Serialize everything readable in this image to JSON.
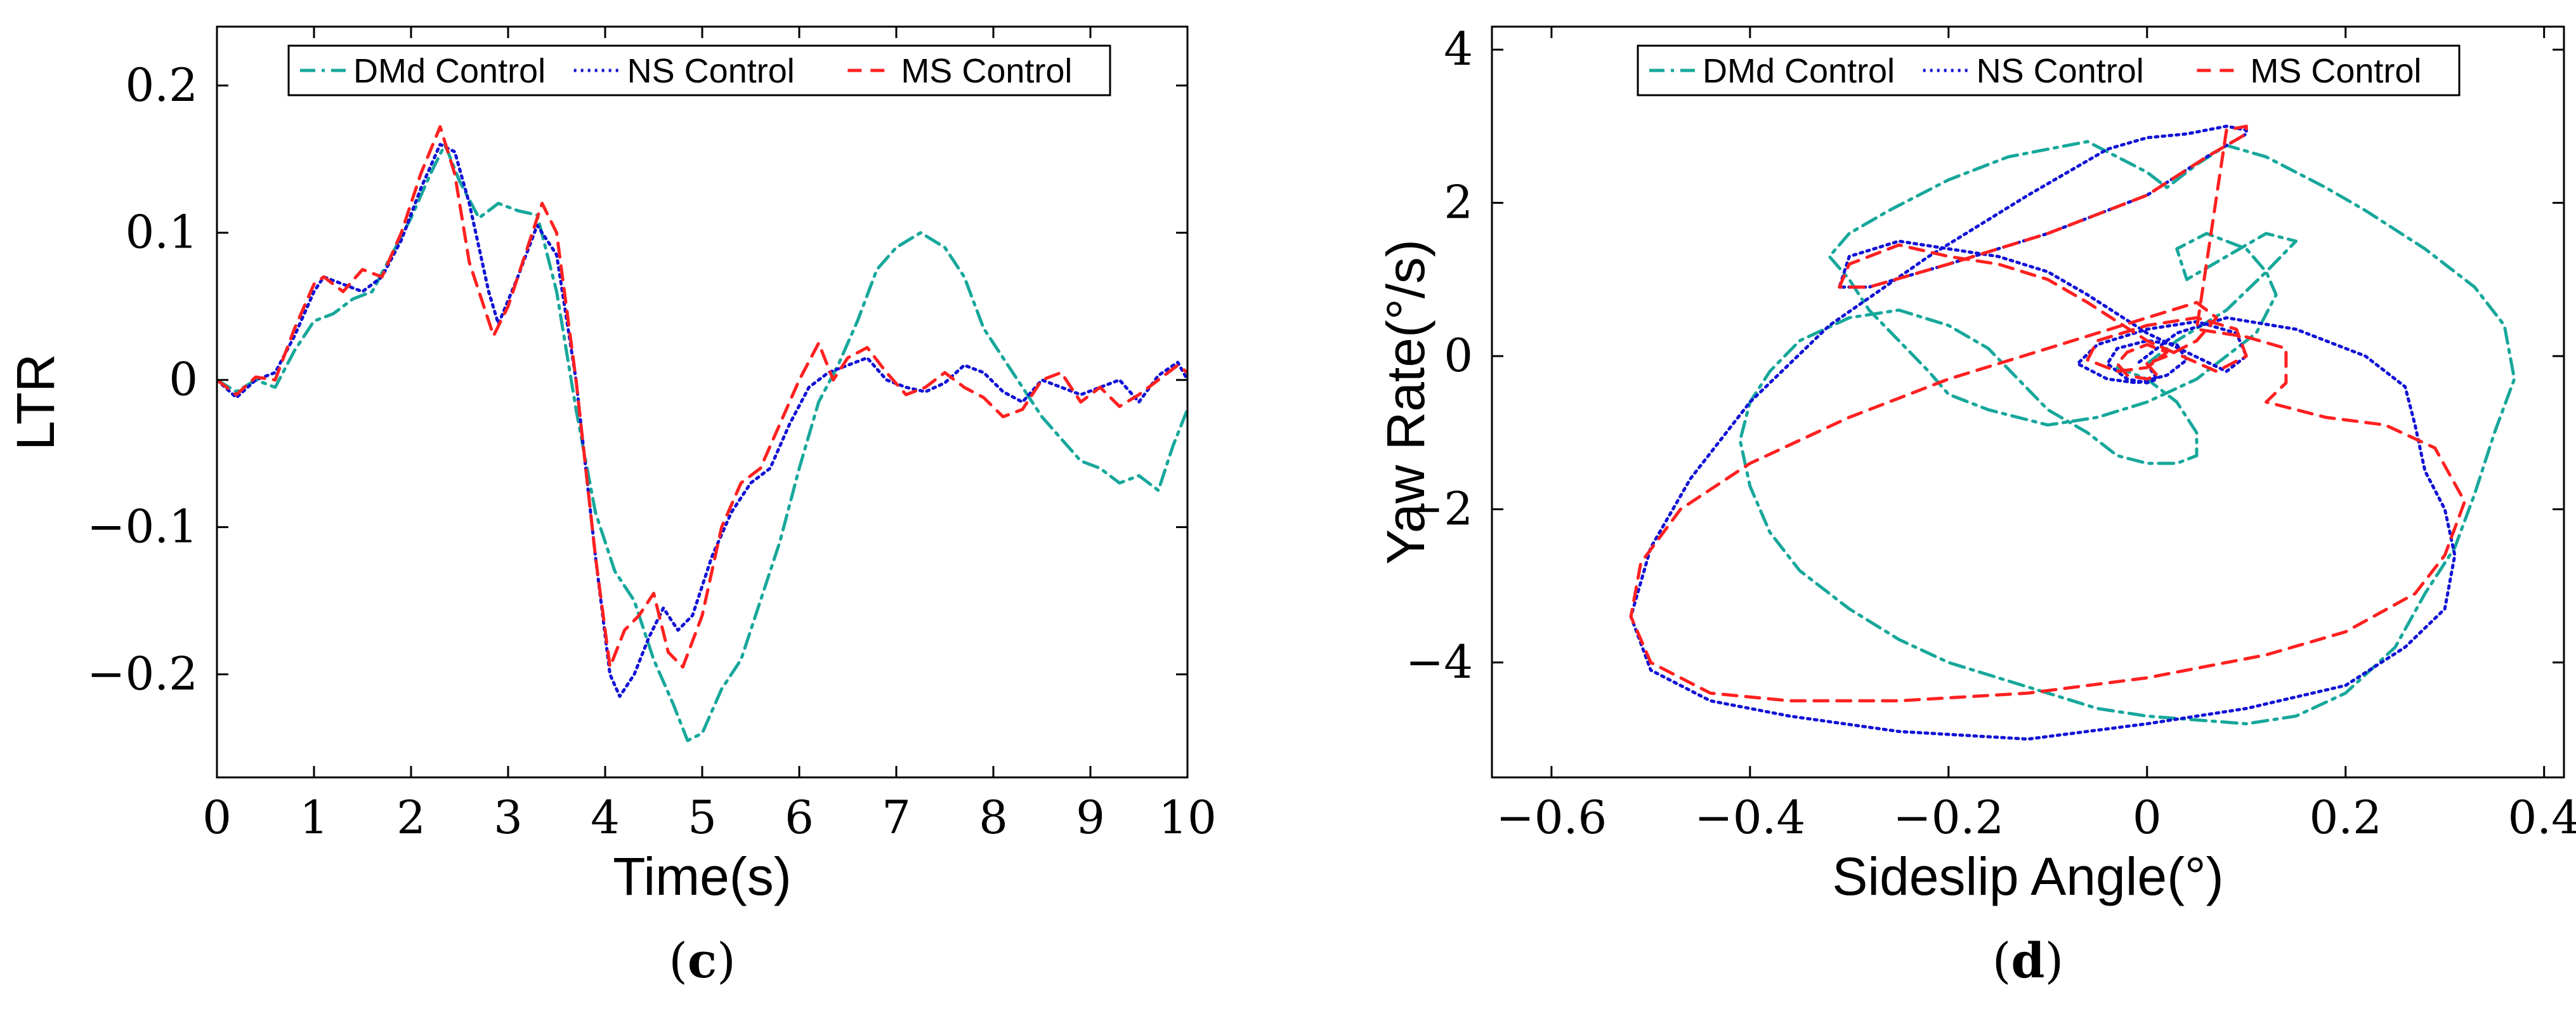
{
  "chart_data": [
    {
      "id": "c",
      "type": "line",
      "panel_label": "c",
      "xlabel": "Time(s)",
      "ylabel": "LTR",
      "xlim": [
        0,
        10
      ],
      "ylim": [
        -0.27,
        0.24
      ],
      "xticks": [
        0,
        1,
        2,
        3,
        4,
        5,
        6,
        7,
        8,
        9,
        10
      ],
      "xtick_labels": [
        "0",
        "1",
        "2",
        "3",
        "4",
        "5",
        "6",
        "7",
        "8",
        "9",
        "10"
      ],
      "yticks": [
        -0.2,
        -0.1,
        0,
        0.1,
        0.2
      ],
      "ytick_labels": [
        "−0.2",
        "−0.1",
        "0",
        "0.1",
        "0.2"
      ],
      "grid": false,
      "legend_position": "top",
      "series": [
        {
          "name": "DMd Control",
          "color": "#17a79b",
          "dash": "dashdot",
          "x": [
            0,
            0.2,
            0.4,
            0.6,
            0.8,
            1.0,
            1.2,
            1.4,
            1.6,
            1.8,
            2.0,
            2.2,
            2.35,
            2.5,
            2.7,
            2.9,
            3.1,
            3.3,
            3.5,
            3.7,
            3.9,
            4.1,
            4.3,
            4.5,
            4.7,
            4.85,
            5.0,
            5.2,
            5.4,
            5.6,
            5.8,
            6.0,
            6.2,
            6.4,
            6.6,
            6.8,
            7.0,
            7.25,
            7.5,
            7.7,
            7.9,
            8.1,
            8.3,
            8.5,
            8.7,
            8.9,
            9.1,
            9.3,
            9.5,
            9.7,
            9.85,
            10.0
          ],
          "y": [
            0.0,
            -0.008,
            0.0,
            -0.005,
            0.02,
            0.04,
            0.045,
            0.055,
            0.06,
            0.085,
            0.11,
            0.14,
            0.16,
            0.135,
            0.11,
            0.12,
            0.115,
            0.112,
            0.06,
            -0.02,
            -0.09,
            -0.13,
            -0.15,
            -0.19,
            -0.22,
            -0.245,
            -0.24,
            -0.21,
            -0.19,
            -0.15,
            -0.11,
            -0.06,
            -0.015,
            0.01,
            0.04,
            0.075,
            0.09,
            0.1,
            0.09,
            0.07,
            0.035,
            0.015,
            -0.005,
            -0.025,
            -0.04,
            -0.055,
            -0.06,
            -0.07,
            -0.065,
            -0.075,
            -0.045,
            -0.02
          ]
        },
        {
          "name": "NS Control",
          "color": "#1212d6",
          "dash": "dotted",
          "x": [
            0,
            0.2,
            0.4,
            0.6,
            0.8,
            1.0,
            1.1,
            1.3,
            1.5,
            1.7,
            1.9,
            2.1,
            2.3,
            2.45,
            2.6,
            2.8,
            2.9,
            3.1,
            3.3,
            3.5,
            3.7,
            3.9,
            4.05,
            4.15,
            4.3,
            4.45,
            4.6,
            4.75,
            4.9,
            5.1,
            5.3,
            5.5,
            5.7,
            5.9,
            6.1,
            6.3,
            6.5,
            6.7,
            6.9,
            7.1,
            7.3,
            7.5,
            7.7,
            7.9,
            8.1,
            8.3,
            8.5,
            8.7,
            8.9,
            9.1,
            9.3,
            9.5,
            9.7,
            9.9,
            10.0
          ],
          "y": [
            0.0,
            -0.012,
            0.0,
            0.005,
            0.03,
            0.06,
            0.07,
            0.065,
            0.06,
            0.07,
            0.095,
            0.13,
            0.16,
            0.155,
            0.12,
            0.06,
            0.038,
            0.07,
            0.105,
            0.085,
            0.0,
            -0.12,
            -0.2,
            -0.215,
            -0.2,
            -0.175,
            -0.155,
            -0.17,
            -0.16,
            -0.12,
            -0.09,
            -0.07,
            -0.06,
            -0.03,
            -0.005,
            0.005,
            0.01,
            0.015,
            0.0,
            -0.005,
            -0.008,
            -0.002,
            0.01,
            0.005,
            -0.008,
            -0.015,
            0.0,
            -0.005,
            -0.01,
            -0.005,
            0.0,
            -0.015,
            0.003,
            0.012,
            0.0
          ]
        },
        {
          "name": "MS Control",
          "color": "#ff2020",
          "dash": "dashed",
          "x": [
            0,
            0.2,
            0.4,
            0.6,
            0.8,
            1.0,
            1.1,
            1.3,
            1.5,
            1.7,
            1.9,
            2.1,
            2.3,
            2.45,
            2.6,
            2.8,
            2.85,
            3.0,
            3.2,
            3.35,
            3.5,
            3.7,
            3.9,
            4.05,
            4.2,
            4.35,
            4.5,
            4.65,
            4.8,
            5.0,
            5.2,
            5.4,
            5.6,
            5.8,
            6.0,
            6.2,
            6.35,
            6.5,
            6.7,
            6.9,
            7.1,
            7.3,
            7.5,
            7.7,
            7.9,
            8.1,
            8.3,
            8.5,
            8.7,
            8.9,
            9.1,
            9.3,
            9.5,
            9.7,
            9.9,
            10.0
          ],
          "y": [
            0.0,
            -0.01,
            0.002,
            0.0,
            0.035,
            0.065,
            0.07,
            0.06,
            0.075,
            0.07,
            0.1,
            0.14,
            0.172,
            0.14,
            0.08,
            0.04,
            0.03,
            0.05,
            0.09,
            0.12,
            0.1,
            0.0,
            -0.12,
            -0.195,
            -0.17,
            -0.16,
            -0.145,
            -0.185,
            -0.195,
            -0.16,
            -0.1,
            -0.07,
            -0.06,
            -0.03,
            0.0,
            0.025,
            0.0,
            0.015,
            0.022,
            0.005,
            -0.01,
            -0.005,
            0.005,
            -0.005,
            -0.012,
            -0.025,
            -0.02,
            0.0,
            0.005,
            -0.015,
            -0.005,
            -0.018,
            -0.01,
            0.0,
            0.01,
            0.005
          ]
        }
      ]
    },
    {
      "id": "d",
      "type": "line",
      "panel_label": "d",
      "xlabel": "Sideslip Angle(°)",
      "ylabel": "Yaw Rate(°/s)",
      "xlim": [
        -0.66,
        0.42
      ],
      "ylim": [
        -5.5,
        4.3
      ],
      "xticks": [
        -0.6,
        -0.4,
        -0.2,
        0,
        0.2,
        0.4
      ],
      "xtick_labels": [
        "−0.6",
        "−0.4",
        "−0.2",
        "0",
        "0.2",
        "0.4"
      ],
      "yticks": [
        -4,
        -2,
        0,
        2,
        4
      ],
      "ytick_labels": [
        "−4",
        "−2",
        "0",
        "2",
        "4"
      ],
      "grid": false,
      "legend_position": "top",
      "series": [
        {
          "name": "DMd Control",
          "color": "#17a79b",
          "dash": "dashdot",
          "x": [
            0.0,
            0.03,
            0.08,
            0.12,
            0.15,
            0.12,
            0.08,
            0.04,
            0.03,
            0.06,
            0.1,
            0.12,
            0.13,
            0.11,
            0.05,
            0.0,
            -0.05,
            -0.1,
            -0.16,
            -0.2,
            -0.22,
            -0.25,
            -0.28,
            -0.3,
            -0.32,
            -0.3,
            -0.26,
            -0.2,
            -0.14,
            -0.1,
            -0.06,
            -0.03,
            0.0,
            0.02,
            0.05,
            0.08,
            0.12,
            0.18,
            0.22,
            0.28,
            0.33,
            0.36,
            0.37,
            0.35,
            0.33,
            0.31,
            0.28,
            0.25,
            0.2,
            0.15,
            0.1,
            0.05,
            0.0,
            -0.05,
            -0.1,
            -0.15,
            -0.2,
            -0.25,
            -0.3,
            -0.35,
            -0.38,
            -0.4,
            -0.41,
            -0.4,
            -0.38,
            -0.35,
            -0.3,
            -0.25,
            -0.2,
            -0.16,
            -0.13,
            -0.1,
            -0.06,
            -0.03,
            0.0,
            0.03,
            0.05,
            0.05,
            0.03,
            0.0,
            -0.02,
            -0.03
          ],
          "y": [
            -0.1,
            0.2,
            0.6,
            1.1,
            1.5,
            1.6,
            1.3,
            1.0,
            1.4,
            1.6,
            1.4,
            1.1,
            0.8,
            0.3,
            -0.3,
            -0.6,
            -0.8,
            -0.9,
            -0.7,
            -0.5,
            -0.2,
            0.2,
            0.6,
            1.0,
            1.3,
            1.6,
            1.9,
            2.3,
            2.6,
            2.7,
            2.8,
            2.6,
            2.4,
            2.2,
            2.5,
            2.75,
            2.6,
            2.2,
            1.9,
            1.4,
            0.9,
            0.4,
            -0.3,
            -1.0,
            -1.8,
            -2.5,
            -3.1,
            -3.8,
            -4.4,
            -4.7,
            -4.8,
            -4.75,
            -4.7,
            -4.6,
            -4.4,
            -4.2,
            -4.0,
            -3.7,
            -3.3,
            -2.8,
            -2.3,
            -1.7,
            -1.1,
            -0.6,
            -0.2,
            0.2,
            0.5,
            0.6,
            0.4,
            0.1,
            -0.3,
            -0.7,
            -1.0,
            -1.3,
            -1.4,
            -1.4,
            -1.3,
            -1.0,
            -0.6,
            -0.3,
            -0.2,
            -0.15
          ]
        },
        {
          "name": "NS Control",
          "color": "#1212d6",
          "dash": "dotted",
          "x": [
            0.0,
            0.01,
            0.0,
            -0.02,
            -0.04,
            -0.03,
            0.0,
            0.03,
            0.04,
            0.02,
            -0.01,
            -0.04,
            -0.07,
            -0.05,
            0.0,
            0.05,
            0.09,
            0.1,
            0.08,
            0.0,
            -0.06,
            -0.1,
            -0.15,
            -0.2,
            -0.25,
            -0.3,
            -0.31,
            -0.28,
            -0.2,
            -0.1,
            0.0,
            0.06,
            0.1,
            0.1,
            0.08,
            0.04,
            0.0,
            -0.04,
            -0.12,
            -0.22,
            -0.32,
            -0.4,
            -0.46,
            -0.5,
            -0.52,
            -0.5,
            -0.44,
            -0.36,
            -0.25,
            -0.12,
            0.0,
            0.1,
            0.2,
            0.26,
            0.3,
            0.31,
            0.3,
            0.28,
            0.27,
            0.26,
            0.22,
            0.15,
            0.08,
            0.03,
            0.0,
            -0.01
          ],
          "y": [
            -0.1,
            -0.3,
            -0.35,
            -0.3,
            -0.1,
            0.1,
            0.2,
            0.15,
            -0.05,
            -0.25,
            -0.35,
            -0.3,
            -0.1,
            0.15,
            0.35,
            0.45,
            0.3,
            0.0,
            -0.2,
            0.3,
            0.8,
            1.1,
            1.3,
            1.4,
            1.5,
            1.3,
            0.9,
            0.9,
            1.2,
            1.6,
            2.1,
            2.6,
            2.9,
            2.95,
            3.0,
            2.9,
            2.85,
            2.7,
            2.1,
            1.3,
            0.4,
            -0.6,
            -1.6,
            -2.5,
            -3.4,
            -4.1,
            -4.5,
            -4.7,
            -4.9,
            -5.0,
            -4.8,
            -4.6,
            -4.3,
            -3.8,
            -3.3,
            -2.6,
            -2.0,
            -1.5,
            -0.9,
            -0.4,
            0.0,
            0.35,
            0.5,
            0.3,
            0.0,
            -0.1
          ]
        },
        {
          "name": "MS Control",
          "color": "#ff2020",
          "dash": "dashed",
          "x": [
            0.0,
            0.01,
            0.0,
            -0.02,
            -0.03,
            -0.02,
            0.0,
            0.02,
            0.0,
            -0.03,
            -0.06,
            -0.05,
            0.0,
            0.05,
            0.09,
            0.1,
            0.07,
            0.0,
            -0.06,
            -0.1,
            -0.15,
            -0.2,
            -0.25,
            -0.3,
            -0.31,
            -0.28,
            -0.2,
            -0.1,
            0.0,
            0.06,
            0.1,
            0.1,
            0.08,
            0.05,
            0.1,
            0.14,
            0.14,
            0.12,
            0.18,
            0.24,
            0.29,
            0.32,
            0.3,
            0.27,
            0.2,
            0.12,
            0.0,
            -0.12,
            -0.25,
            -0.36,
            -0.44,
            -0.5,
            -0.52,
            -0.51,
            -0.47,
            -0.4,
            -0.3,
            -0.2,
            -0.1,
            0.0,
            0.05,
            0.07,
            0.05,
            0.02,
            0.0
          ],
          "y": [
            -0.1,
            -0.25,
            -0.3,
            -0.25,
            -0.1,
            0.05,
            0.15,
            0.05,
            -0.15,
            -0.2,
            -0.05,
            0.2,
            0.4,
            0.5,
            0.35,
            0.0,
            -0.2,
            0.2,
            0.7,
            1.0,
            1.2,
            1.3,
            1.45,
            1.2,
            0.9,
            0.9,
            1.2,
            1.6,
            2.1,
            2.6,
            2.9,
            3.0,
            2.95,
            0.35,
            0.25,
            0.1,
            -0.35,
            -0.6,
            -0.8,
            -0.9,
            -1.2,
            -1.9,
            -2.6,
            -3.1,
            -3.6,
            -3.9,
            -4.2,
            -4.4,
            -4.5,
            -4.5,
            -4.4,
            -4.0,
            -3.4,
            -2.7,
            -2.0,
            -1.4,
            -0.8,
            -0.3,
            0.1,
            0.5,
            0.7,
            0.5,
            0.2,
            0.0,
            -0.1
          ]
        }
      ]
    }
  ]
}
